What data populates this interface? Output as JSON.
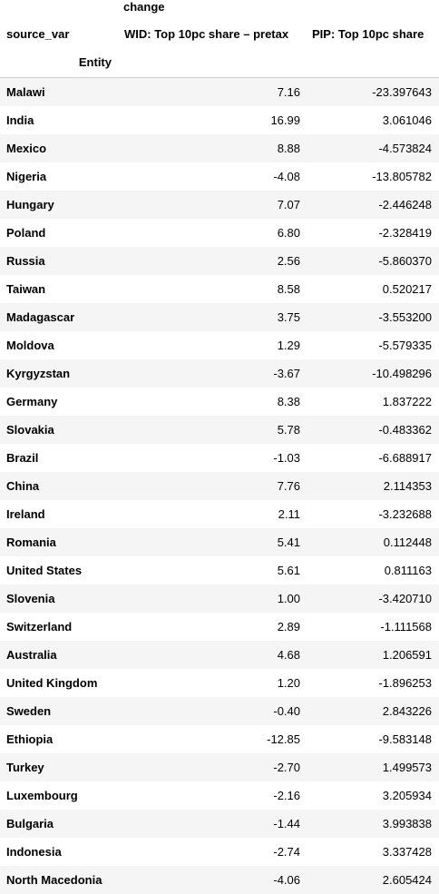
{
  "header": {
    "level0": "change",
    "index_name": "source_var",
    "row_index_name": "Entity",
    "columns": [
      "WID: Top 10pc share – pretax",
      "PIP: Top 10pc share"
    ]
  },
  "rows": [
    {
      "entity": "Malawi",
      "wid": "7.16",
      "pip": "-23.397643"
    },
    {
      "entity": "India",
      "wid": "16.99",
      "pip": "3.061046"
    },
    {
      "entity": "Mexico",
      "wid": "8.88",
      "pip": "-4.573824"
    },
    {
      "entity": "Nigeria",
      "wid": "-4.08",
      "pip": "-13.805782"
    },
    {
      "entity": "Hungary",
      "wid": "7.07",
      "pip": "-2.446248"
    },
    {
      "entity": "Poland",
      "wid": "6.80",
      "pip": "-2.328419"
    },
    {
      "entity": "Russia",
      "wid": "2.56",
      "pip": "-5.860370"
    },
    {
      "entity": "Taiwan",
      "wid": "8.58",
      "pip": "0.520217"
    },
    {
      "entity": "Madagascar",
      "wid": "3.75",
      "pip": "-3.553200"
    },
    {
      "entity": "Moldova",
      "wid": "1.29",
      "pip": "-5.579335"
    },
    {
      "entity": "Kyrgyzstan",
      "wid": "-3.67",
      "pip": "-10.498296"
    },
    {
      "entity": "Germany",
      "wid": "8.38",
      "pip": "1.837222"
    },
    {
      "entity": "Slovakia",
      "wid": "5.78",
      "pip": "-0.483362"
    },
    {
      "entity": "Brazil",
      "wid": "-1.03",
      "pip": "-6.688917"
    },
    {
      "entity": "China",
      "wid": "7.76",
      "pip": "2.114353"
    },
    {
      "entity": "Ireland",
      "wid": "2.11",
      "pip": "-3.232688"
    },
    {
      "entity": "Romania",
      "wid": "5.41",
      "pip": "0.112448"
    },
    {
      "entity": "United States",
      "wid": "5.61",
      "pip": "0.811163"
    },
    {
      "entity": "Slovenia",
      "wid": "1.00",
      "pip": "-3.420710"
    },
    {
      "entity": "Switzerland",
      "wid": "2.89",
      "pip": "-1.111568"
    },
    {
      "entity": "Australia",
      "wid": "4.68",
      "pip": "1.206591"
    },
    {
      "entity": "United Kingdom",
      "wid": "1.20",
      "pip": "-1.896253"
    },
    {
      "entity": "Sweden",
      "wid": "-0.40",
      "pip": "2.843226"
    },
    {
      "entity": "Ethiopia",
      "wid": "-12.85",
      "pip": "-9.583148"
    },
    {
      "entity": "Turkey",
      "wid": "-2.70",
      "pip": "1.499573"
    },
    {
      "entity": "Luxembourg",
      "wid": "-2.16",
      "pip": "3.205934"
    },
    {
      "entity": "Bulgaria",
      "wid": "-1.44",
      "pip": "3.993838"
    },
    {
      "entity": "Indonesia",
      "wid": "-2.74",
      "pip": "3.337428"
    },
    {
      "entity": "North Macedonia",
      "wid": "-4.06",
      "pip": "2.605424"
    }
  ]
}
